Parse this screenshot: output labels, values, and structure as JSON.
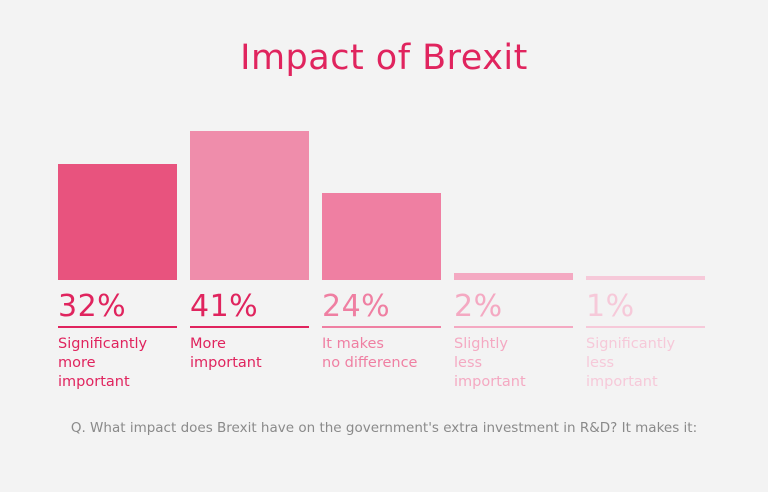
{
  "chart_data": {
    "type": "bar",
    "title": "Impact of Brexit",
    "categories": [
      "Significantly\nmore\nimportant",
      "More\nimportant",
      "It makes\nno difference",
      "Slightly\nless\nimportant",
      "Significantly\nless\nimportant"
    ],
    "values": [
      32,
      41,
      24,
      2,
      1
    ],
    "value_labels": [
      "32%",
      "41%",
      "24%",
      "2%",
      "1%"
    ],
    "colors": [
      "#e8537e",
      "#e0245e",
      "#ef7fa2",
      "#f4a9c2",
      "#f6c9d9"
    ],
    "text_colors": [
      "#e0245e",
      "#e0245e",
      "#ef7fa2",
      "#f4a9c2",
      "#f6c9d9"
    ],
    "highlight_index": 1,
    "ylim": [
      0,
      41
    ],
    "xlabel": "",
    "ylabel": "",
    "question": "Q. What impact does Brexit have on the government's extra investment in R&D? It makes it:"
  }
}
